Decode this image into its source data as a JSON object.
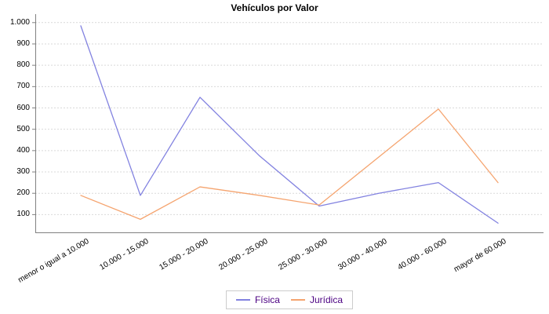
{
  "chart_data": {
    "type": "line",
    "title": "Vehículos por Valor",
    "categories": [
      "menor o igual a 10.000",
      "10.000 - 15.000",
      "15.000 - 20.000",
      "20.000 - 25.000",
      "25.000 - 30.000",
      "30.000 - 40.000",
      "40.000 - 60.000",
      "mayor de 60.000"
    ],
    "series": [
      {
        "name": "Física",
        "color": "#8282e0",
        "values": [
          985,
          190,
          650,
          375,
          140,
          200,
          250,
          60
        ]
      },
      {
        "name": "Jurídica",
        "color": "#f5a46f",
        "values": [
          190,
          78,
          230,
          190,
          145,
          370,
          595,
          250
        ]
      }
    ],
    "xlabel": "",
    "ylabel": "",
    "ylim": [
      15,
      1025
    ],
    "ytick_values": [
      100,
      200,
      300,
      400,
      500,
      600,
      700,
      800,
      900,
      1000
    ],
    "ytick_labels": [
      "100",
      "200",
      "300",
      "400",
      "500",
      "600",
      "700",
      "800",
      "900",
      "1.000"
    ],
    "grid": "horizontal-dashed",
    "legend_position": "bottom-center"
  },
  "colors": {
    "axis_line": "#808080",
    "grid_line": "#d9d9d9",
    "tick_text": "#000000",
    "legend_text": "#4b0082",
    "legend_border": "#cccccc",
    "background": "#ffffff"
  }
}
